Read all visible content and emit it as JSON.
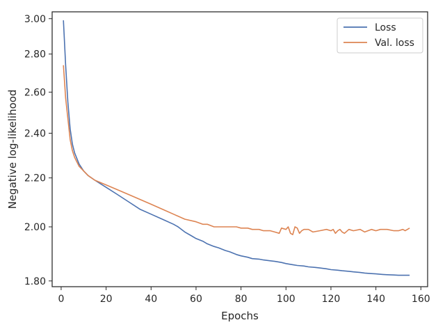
{
  "chart_data": {
    "type": "line",
    "title": "",
    "xlabel": "Epochs",
    "ylabel": "Negative log-likelihood",
    "xlim": [
      -4,
      163
    ],
    "ylim": [
      1.78,
      3.04
    ],
    "y_scale": "log",
    "grid": false,
    "legend_position": "top-right",
    "x_ticks": [
      0,
      20,
      40,
      60,
      80,
      100,
      120,
      140,
      160
    ],
    "x_tick_labels": [
      "0",
      "20",
      "40",
      "60",
      "80",
      "100",
      "120",
      "140",
      "160"
    ],
    "y_ticks": [
      1.8,
      2.0,
      2.2,
      2.4,
      2.6,
      2.8,
      3.0
    ],
    "y_tick_labels": [
      "1.80",
      "2.00",
      "2.20",
      "2.40",
      "2.60",
      "2.80",
      "3.00"
    ],
    "series": [
      {
        "name": "Loss",
        "color": "#4c72b0",
        "x": [
          1,
          2,
          3,
          4,
          5,
          6,
          8,
          10,
          12,
          15,
          20,
          25,
          30,
          35,
          40,
          45,
          50,
          52,
          55,
          58,
          60,
          63,
          65,
          68,
          70,
          73,
          75,
          78,
          80,
          83,
          85,
          88,
          90,
          93,
          95,
          98,
          100,
          103,
          105,
          108,
          110,
          113,
          115,
          118,
          120,
          123,
          125,
          128,
          130,
          133,
          135,
          138,
          140,
          143,
          145,
          148,
          150,
          152,
          155
        ],
        "y": [
          2.99,
          2.74,
          2.55,
          2.42,
          2.35,
          2.31,
          2.26,
          2.23,
          2.21,
          2.19,
          2.16,
          2.13,
          2.1,
          2.07,
          2.05,
          2.03,
          2.01,
          2.0,
          1.98,
          1.965,
          1.955,
          1.945,
          1.935,
          1.925,
          1.92,
          1.91,
          1.905,
          1.895,
          1.89,
          1.885,
          1.88,
          1.878,
          1.875,
          1.872,
          1.87,
          1.866,
          1.862,
          1.858,
          1.855,
          1.853,
          1.85,
          1.848,
          1.846,
          1.843,
          1.84,
          1.838,
          1.836,
          1.834,
          1.832,
          1.83,
          1.828,
          1.826,
          1.825,
          1.823,
          1.822,
          1.821,
          1.82,
          1.82,
          1.82
        ]
      },
      {
        "name": "Val. loss",
        "color": "#dd8452",
        "x": [
          1,
          2,
          3,
          4,
          5,
          6,
          8,
          10,
          12,
          15,
          20,
          25,
          30,
          35,
          40,
          45,
          50,
          55,
          60,
          63,
          65,
          68,
          70,
          73,
          75,
          78,
          80,
          83,
          85,
          88,
          90,
          93,
          95,
          97,
          98,
          100,
          101,
          102,
          103,
          104,
          105,
          106,
          107,
          108,
          110,
          112,
          115,
          118,
          120,
          121,
          122,
          123,
          124,
          125,
          126,
          128,
          130,
          133,
          135,
          138,
          140,
          142,
          145,
          148,
          150,
          152,
          153,
          155
        ],
        "y": [
          2.74,
          2.57,
          2.47,
          2.37,
          2.32,
          2.29,
          2.25,
          2.23,
          2.21,
          2.19,
          2.17,
          2.15,
          2.13,
          2.11,
          2.09,
          2.07,
          2.05,
          2.03,
          2.02,
          2.01,
          2.01,
          2.0,
          2.0,
          2.0,
          2.0,
          2.0,
          1.995,
          1.995,
          1.99,
          1.99,
          1.985,
          1.985,
          1.98,
          1.975,
          1.995,
          1.99,
          2.0,
          1.975,
          1.97,
          2.0,
          1.995,
          1.975,
          1.985,
          1.99,
          1.99,
          1.98,
          1.985,
          1.99,
          1.985,
          1.99,
          1.975,
          1.985,
          1.99,
          1.98,
          1.975,
          1.99,
          1.985,
          1.99,
          1.98,
          1.99,
          1.985,
          1.99,
          1.99,
          1.985,
          1.985,
          1.99,
          1.985,
          1.995
        ]
      }
    ]
  }
}
